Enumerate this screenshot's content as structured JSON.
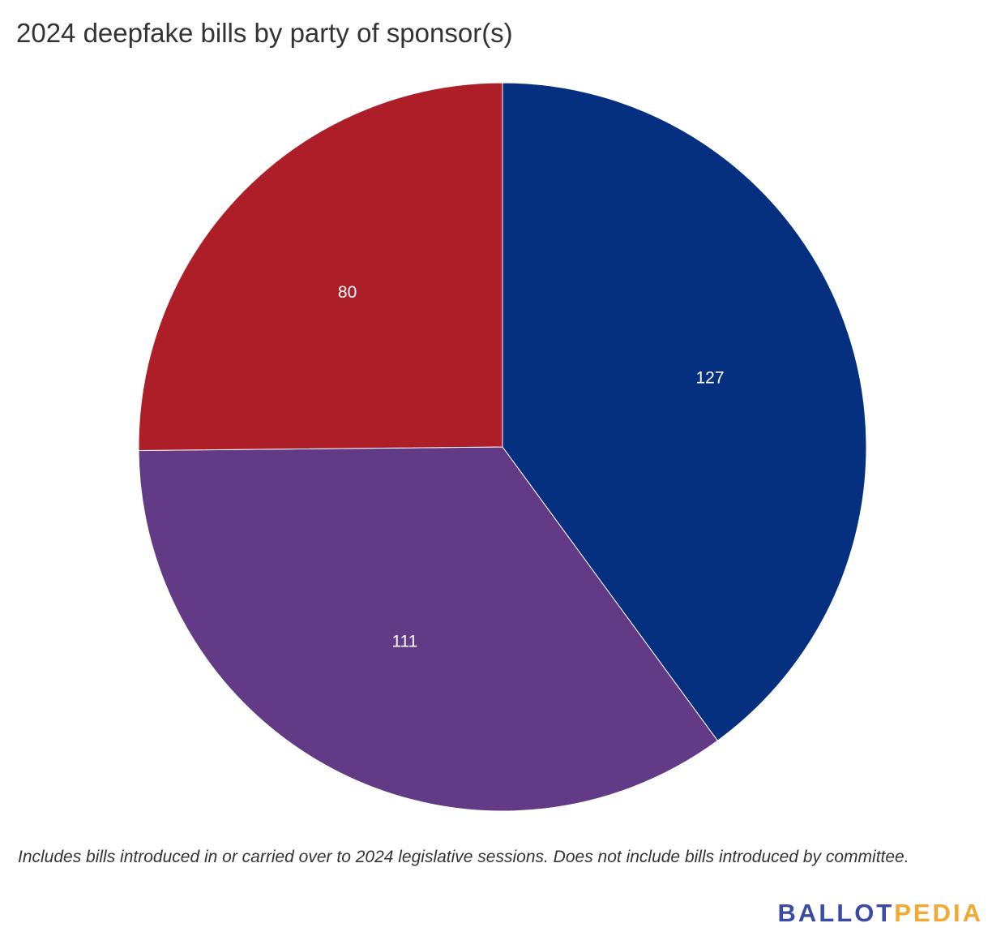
{
  "chart_data": {
    "type": "pie",
    "title": "2024 deepfake bills by party of sponsor(s)",
    "slices": [
      {
        "label": "127",
        "value": 127,
        "color": "#04307f"
      },
      {
        "label": "111",
        "value": 111,
        "color": "#633a86"
      },
      {
        "label": "80",
        "value": 80,
        "color": "#ae1e29"
      }
    ],
    "start": "12 o'clock",
    "direction": "clockwise",
    "legend": "none"
  },
  "footnote": "Includes bills introduced in or carried over to 2024 legislative sessions. Does not include bills introduced by committee.",
  "brand": {
    "part1": "BALLOT",
    "part2": "PEDIA",
    "color1": "#3b4ba3",
    "color2": "#f2a833"
  }
}
